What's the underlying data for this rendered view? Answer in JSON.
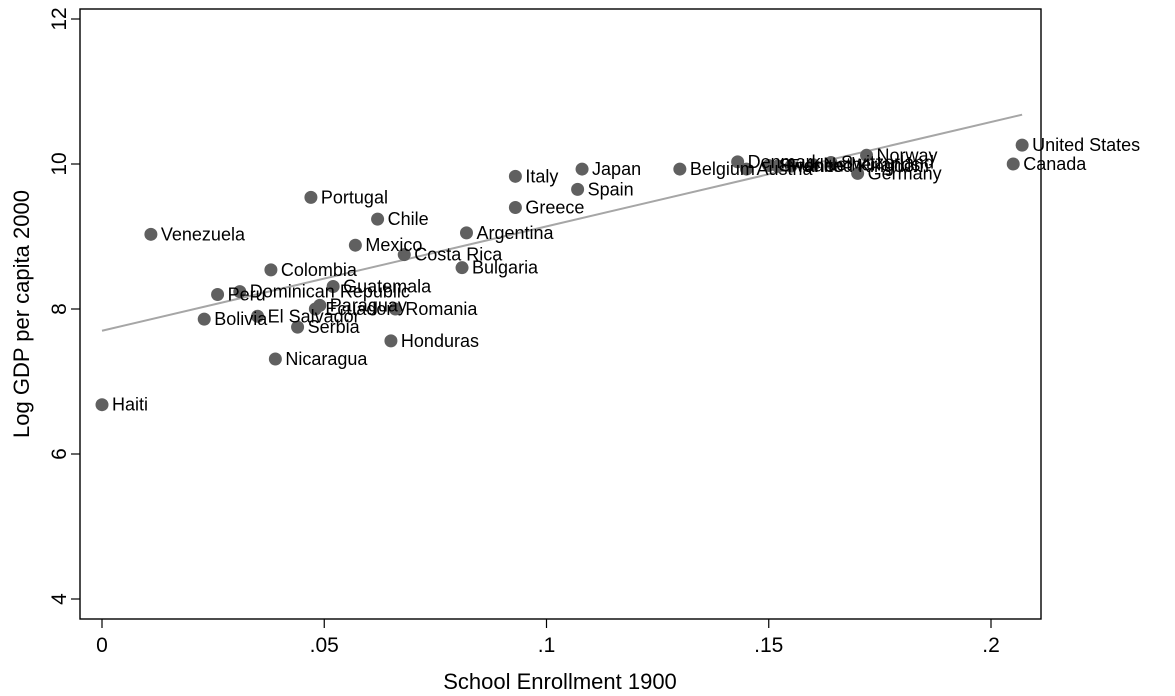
{
  "chart_data": {
    "type": "scatter",
    "title": "",
    "xlabel": "School Enrollment 1900",
    "ylabel": "Log GDP per capita 2000",
    "xlim": [
      0,
      0.21
    ],
    "ylim": [
      4,
      12
    ],
    "xticks": [
      0,
      0.05,
      0.1,
      0.15,
      0.2
    ],
    "xtick_labels": [
      "0",
      ".05",
      ".1",
      ".15",
      ".2"
    ],
    "yticks": [
      4,
      6,
      8,
      10,
      12
    ],
    "ytick_labels": [
      "4",
      "6",
      "8",
      "10",
      "12"
    ],
    "grid": false,
    "legend": "none",
    "point_color": "#606060",
    "fit_line_color": "#a6a6a6",
    "fit_line": {
      "x": [
        0,
        0.207
      ],
      "y": [
        7.7,
        10.68
      ]
    },
    "points": [
      {
        "label": "United States",
        "x": 0.207,
        "y": 10.26
      },
      {
        "label": "Canada",
        "x": 0.205,
        "y": 10.0
      },
      {
        "label": "Norway",
        "x": 0.172,
        "y": 10.12
      },
      {
        "label": "Germany",
        "x": 0.17,
        "y": 9.87
      },
      {
        "label": "Switzerland",
        "x": 0.164,
        "y": 10.02
      },
      {
        "label": "Netherlands",
        "x": 0.16,
        "y": 9.99
      },
      {
        "label": "United Kingdom",
        "x": 0.155,
        "y": 9.97
      },
      {
        "label": "France",
        "x": 0.152,
        "y": 9.97
      },
      {
        "label": "Sweden",
        "x": 0.15,
        "y": 9.98
      },
      {
        "label": "Denmark",
        "x": 0.143,
        "y": 10.03
      },
      {
        "label": "Austria",
        "x": 0.145,
        "y": 9.93
      },
      {
        "label": "Belgium",
        "x": 0.13,
        "y": 9.93
      },
      {
        "label": "Japan",
        "x": 0.108,
        "y": 9.93
      },
      {
        "label": "Spain",
        "x": 0.107,
        "y": 9.65
      },
      {
        "label": "Italy",
        "x": 0.093,
        "y": 9.83
      },
      {
        "label": "Greece",
        "x": 0.093,
        "y": 9.4
      },
      {
        "label": "Argentina",
        "x": 0.082,
        "y": 9.05
      },
      {
        "label": "Bulgaria",
        "x": 0.081,
        "y": 8.57
      },
      {
        "label": "Honduras",
        "x": 0.065,
        "y": 7.56
      },
      {
        "label": "Romania",
        "x": 0.066,
        "y": 8.0
      },
      {
        "label": "Costa Rica",
        "x": 0.068,
        "y": 8.75
      },
      {
        "label": "Chile",
        "x": 0.062,
        "y": 9.24
      },
      {
        "label": "Mexico",
        "x": 0.057,
        "y": 8.88
      },
      {
        "label": "Guatemala",
        "x": 0.052,
        "y": 8.31
      },
      {
        "label": "Paraguay",
        "x": 0.049,
        "y": 8.05
      },
      {
        "label": "Ecuador",
        "x": 0.048,
        "y": 8.0
      },
      {
        "label": "Portugal",
        "x": 0.047,
        "y": 9.54
      },
      {
        "label": "Serbia",
        "x": 0.044,
        "y": 7.75
      },
      {
        "label": "Nicaragua",
        "x": 0.039,
        "y": 7.31
      },
      {
        "label": "Colombia",
        "x": 0.038,
        "y": 8.54
      },
      {
        "label": "El Salvador",
        "x": 0.035,
        "y": 7.9
      },
      {
        "label": "Dominican Republic",
        "x": 0.031,
        "y": 8.24
      },
      {
        "label": "Peru",
        "x": 0.026,
        "y": 8.2
      },
      {
        "label": "Bolivia",
        "x": 0.023,
        "y": 7.86
      },
      {
        "label": "Venezuela",
        "x": 0.011,
        "y": 9.03
      },
      {
        "label": "Haiti",
        "x": 0.0,
        "y": 6.68
      }
    ]
  }
}
